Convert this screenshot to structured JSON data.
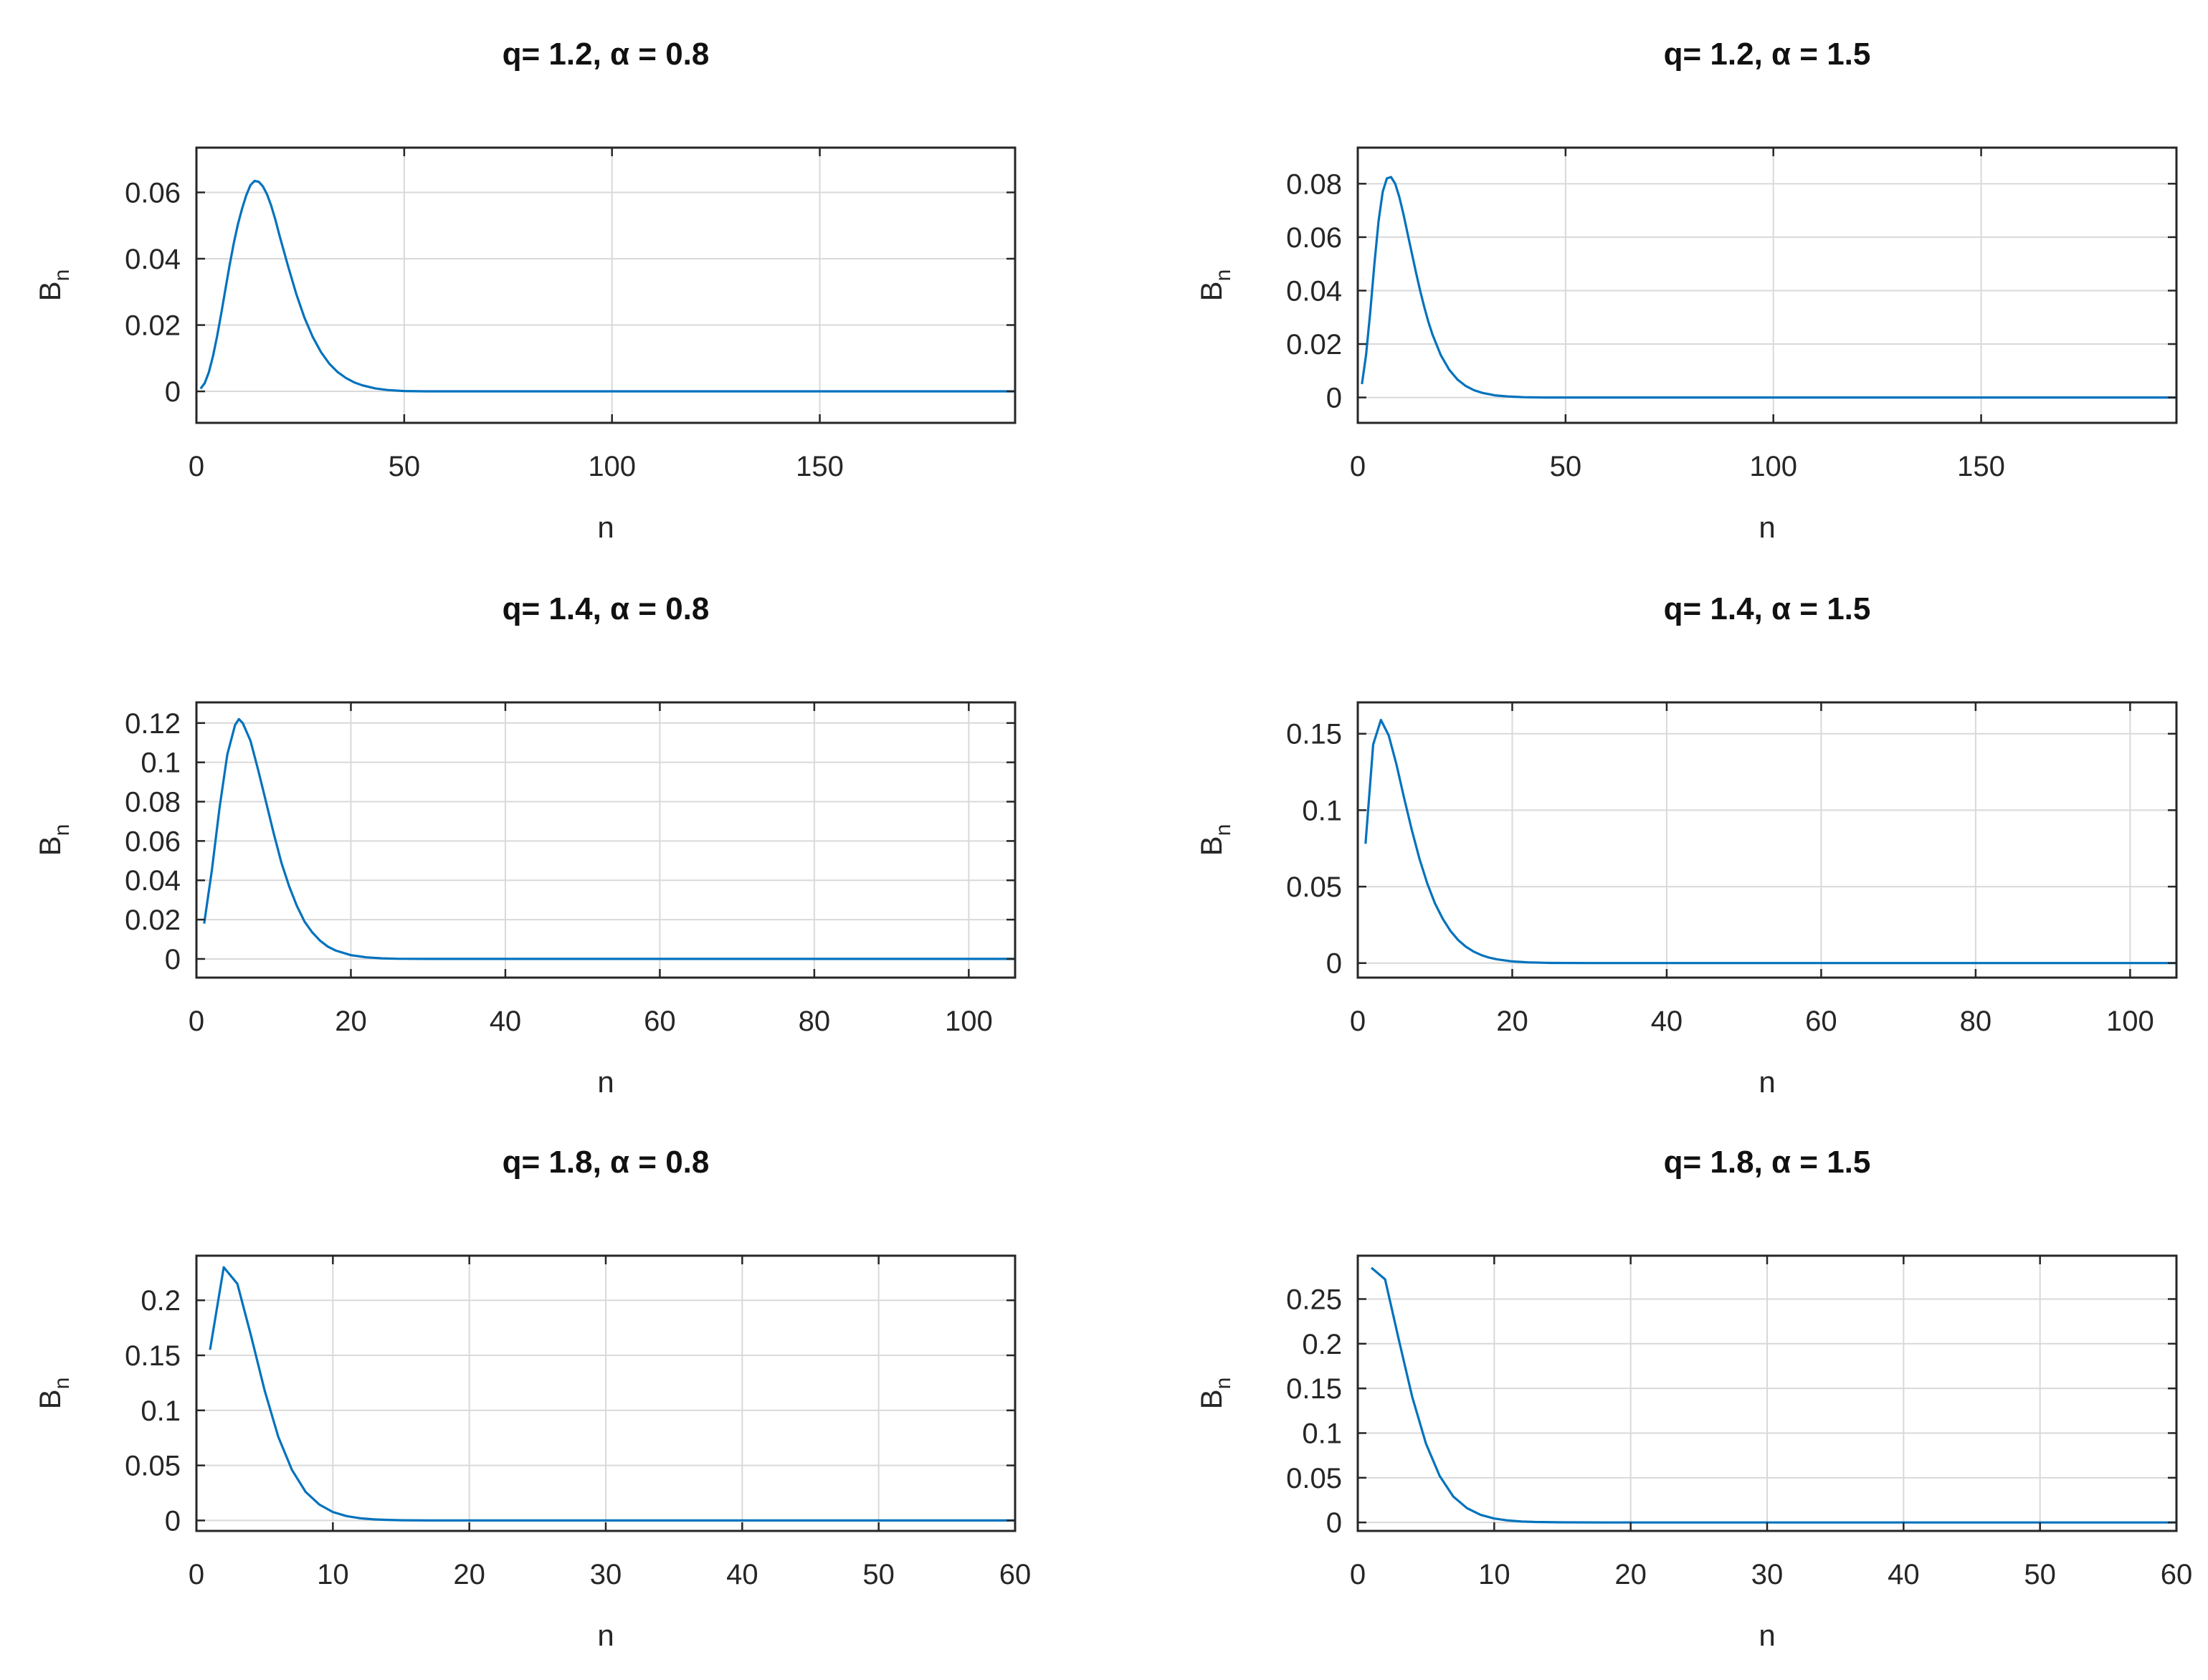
{
  "figure": {
    "line_color": "#0072BD",
    "grid_color": "#d9d9d9",
    "axes_color": "#262626"
  },
  "chart_data": [
    {
      "type": "line",
      "title": "q= 1.2, α = 0.8",
      "xlabel": "n",
      "ylabel": "B",
      "ylabel_sub": "n",
      "xlim": [
        0,
        197
      ],
      "ylim": [
        -0.0095,
        0.0735
      ],
      "xticks": [
        0,
        50,
        100,
        150
      ],
      "xtick_labels": [
        "0",
        "50",
        "100",
        "150"
      ],
      "yticks": [
        0,
        0.02,
        0.04,
        0.06
      ],
      "ytick_labels": [
        "0",
        "0.02",
        "0.04",
        "0.06"
      ],
      "grid": true,
      "series": [
        {
          "x": [
            1,
            2,
            3,
            4,
            5,
            6,
            7,
            8,
            9,
            10,
            11,
            12,
            13,
            14,
            15,
            16,
            17,
            18,
            19,
            20,
            22,
            24,
            26,
            28,
            30,
            32,
            34,
            36,
            38,
            40,
            43,
            46,
            50,
            55,
            60,
            70,
            80,
            100,
            130,
            160,
            197
          ],
          "y": [
            0.0008,
            0.0025,
            0.0058,
            0.0107,
            0.0168,
            0.0237,
            0.031,
            0.0382,
            0.0448,
            0.0505,
            0.0552,
            0.0592,
            0.0622,
            0.0635,
            0.0632,
            0.0618,
            0.0594,
            0.056,
            0.0518,
            0.047,
            0.038,
            0.0295,
            0.0222,
            0.0164,
            0.0118,
            0.0083,
            0.0058,
            0.004,
            0.0027,
            0.0018,
            0.0009,
            0.0004,
            0.0001,
            0,
            0,
            0,
            0,
            0,
            0,
            0,
            0
          ]
        }
      ]
    },
    {
      "type": "line",
      "title": "q= 1.2, α = 1.5",
      "xlabel": "n",
      "ylabel": "B",
      "ylabel_sub": "n",
      "xlim": [
        0,
        197
      ],
      "ylim": [
        -0.0095,
        0.0935
      ],
      "xticks": [
        0,
        50,
        100,
        150
      ],
      "xtick_labels": [
        "0",
        "50",
        "100",
        "150"
      ],
      "yticks": [
        0,
        0.02,
        0.04,
        0.06,
        0.08
      ],
      "ytick_labels": [
        "0",
        "0.02",
        "0.04",
        "0.06",
        "0.08"
      ],
      "grid": true,
      "series": [
        {
          "x": [
            1,
            2,
            3,
            4,
            5,
            6,
            7,
            8,
            9,
            10,
            11,
            12,
            13,
            14,
            15,
            16,
            17,
            18,
            20,
            22,
            24,
            26,
            28,
            30,
            33,
            36,
            40,
            45,
            50,
            60,
            80,
            100,
            150,
            197
          ],
          "y": [
            0.005,
            0.016,
            0.032,
            0.05,
            0.066,
            0.077,
            0.082,
            0.0825,
            0.08,
            0.075,
            0.0685,
            0.0612,
            0.054,
            0.0468,
            0.04,
            0.0338,
            0.0283,
            0.0235,
            0.0158,
            0.0104,
            0.0067,
            0.0043,
            0.0027,
            0.0017,
            0.0008,
            0.0004,
            0.0001,
            0,
            0,
            0,
            0,
            0,
            0,
            0
          ]
        }
      ]
    },
    {
      "type": "line",
      "title": "q= 1.4, α = 0.8",
      "xlabel": "n",
      "ylabel": "B",
      "ylabel_sub": "n",
      "xlim": [
        0,
        106
      ],
      "ylim": [
        -0.0095,
        0.1305
      ],
      "xticks": [
        0,
        20,
        40,
        60,
        80,
        100
      ],
      "xtick_labels": [
        "0",
        "20",
        "40",
        "60",
        "80",
        "100"
      ],
      "yticks": [
        0,
        0.02,
        0.04,
        0.06,
        0.08,
        0.1,
        0.12
      ],
      "ytick_labels": [
        "0",
        "0.02",
        "0.04",
        "0.06",
        "0.08",
        "0.1",
        "0.12"
      ],
      "grid": true,
      "series": [
        {
          "x": [
            1,
            2,
            3,
            4,
            5,
            5.5,
            6,
            7,
            8,
            9,
            10,
            11,
            12,
            13,
            14,
            15,
            16,
            17,
            18,
            20,
            22,
            24,
            26,
            30,
            35,
            40,
            50,
            60,
            80,
            106
          ],
          "y": [
            0.018,
            0.045,
            0.077,
            0.104,
            0.119,
            0.122,
            0.12,
            0.111,
            0.096,
            0.08,
            0.064,
            0.049,
            0.037,
            0.027,
            0.019,
            0.0135,
            0.0093,
            0.0063,
            0.0043,
            0.0019,
            0.0008,
            0.0003,
            0.0001,
            0,
            0,
            0,
            0,
            0,
            0,
            0
          ]
        }
      ]
    },
    {
      "type": "line",
      "title": "q= 1.4, α = 1.5",
      "xlabel": "n",
      "ylabel": "B",
      "ylabel_sub": "n",
      "xlim": [
        0,
        106
      ],
      "ylim": [
        -0.0095,
        0.1705
      ],
      "xticks": [
        0,
        20,
        40,
        60,
        80,
        100
      ],
      "xtick_labels": [
        "0",
        "20",
        "40",
        "60",
        "80",
        "100"
      ],
      "yticks": [
        0,
        0.05,
        0.1,
        0.15
      ],
      "ytick_labels": [
        "0",
        "0.05",
        "0.1",
        "0.15"
      ],
      "grid": true,
      "series": [
        {
          "x": [
            1,
            2,
            3,
            4,
            5,
            6,
            7,
            8,
            9,
            10,
            11,
            12,
            13,
            14,
            15,
            16,
            17,
            18,
            20,
            22,
            25,
            30,
            40,
            60,
            80,
            106
          ],
          "y": [
            0.078,
            0.143,
            0.159,
            0.149,
            0.13,
            0.108,
            0.087,
            0.068,
            0.052,
            0.039,
            0.029,
            0.021,
            0.015,
            0.0107,
            0.0075,
            0.0052,
            0.0036,
            0.0025,
            0.0011,
            0.0005,
            0.0001,
            0,
            0,
            0,
            0,
            0
          ]
        }
      ]
    },
    {
      "type": "line",
      "title": "q= 1.8, α = 0.8",
      "xlabel": "n",
      "ylabel": "B",
      "ylabel_sub": "n",
      "xlim": [
        0,
        60
      ],
      "ylim": [
        -0.0095,
        0.2405
      ],
      "xticks": [
        0,
        10,
        20,
        30,
        40,
        50,
        60
      ],
      "xtick_labels": [
        "0",
        "10",
        "20",
        "30",
        "40",
        "50",
        "60"
      ],
      "yticks": [
        0,
        0.05,
        0.1,
        0.15,
        0.2
      ],
      "ytick_labels": [
        "0",
        "0.05",
        "0.1",
        "0.15",
        "0.2"
      ],
      "grid": true,
      "series": [
        {
          "x": [
            1,
            2,
            3,
            4,
            5,
            6,
            7,
            8,
            9,
            10,
            11,
            12,
            13,
            14,
            15,
            17,
            20,
            25,
            30,
            40,
            50,
            60
          ],
          "y": [
            0.155,
            0.23,
            0.215,
            0.168,
            0.118,
            0.076,
            0.046,
            0.026,
            0.0145,
            0.0077,
            0.004,
            0.002,
            0.001,
            0.0005,
            0.0002,
            0,
            0,
            0,
            0,
            0,
            0,
            0
          ]
        }
      ]
    },
    {
      "type": "line",
      "title": "q= 1.8, α = 1.5",
      "xlabel": "n",
      "ylabel": "B",
      "ylabel_sub": "n",
      "xlim": [
        0,
        60
      ],
      "ylim": [
        -0.0095,
        0.2985
      ],
      "xticks": [
        0,
        10,
        20,
        30,
        40,
        50,
        60
      ],
      "xtick_labels": [
        "0",
        "10",
        "20",
        "30",
        "40",
        "50",
        "60"
      ],
      "yticks": [
        0,
        0.05,
        0.1,
        0.15,
        0.2,
        0.25
      ],
      "ytick_labels": [
        "0",
        "0.05",
        "0.1",
        "0.15",
        "0.2",
        "0.25"
      ],
      "grid": true,
      "series": [
        {
          "x": [
            1,
            2,
            3,
            4,
            5,
            6,
            7,
            8,
            9,
            10,
            11,
            12,
            13,
            15,
            18,
            20,
            25,
            30,
            40,
            50,
            60
          ],
          "y": [
            0.285,
            0.272,
            0.205,
            0.14,
            0.088,
            0.052,
            0.029,
            0.016,
            0.0085,
            0.0044,
            0.0022,
            0.0011,
            0.0005,
            0.0001,
            0,
            0,
            0,
            0,
            0,
            0,
            0
          ]
        }
      ]
    }
  ]
}
